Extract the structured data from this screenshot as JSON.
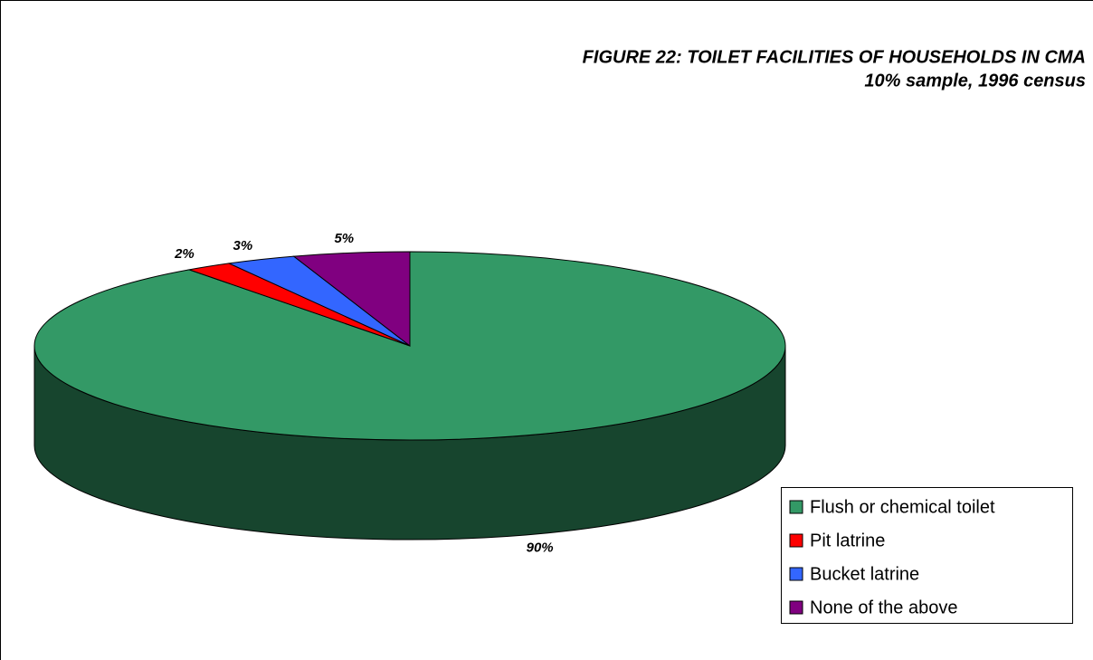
{
  "chart_data": {
    "type": "pie3d",
    "title": "FIGURE 22:  TOILET FACILITIES OF HOUSEHOLDS IN CMA",
    "subtitle": "10% sample, 1996 census",
    "categories": [
      "Flush or chemical toilet",
      "Pit latrine",
      "Bucket latrine",
      "None of the above"
    ],
    "values": [
      90,
      2,
      3,
      5
    ],
    "value_labels": [
      "90%",
      "2%",
      "3%",
      "5%"
    ],
    "colors": [
      "#339966",
      "#ff0000",
      "#3366ff",
      "#800080"
    ],
    "legend": "lower right"
  }
}
